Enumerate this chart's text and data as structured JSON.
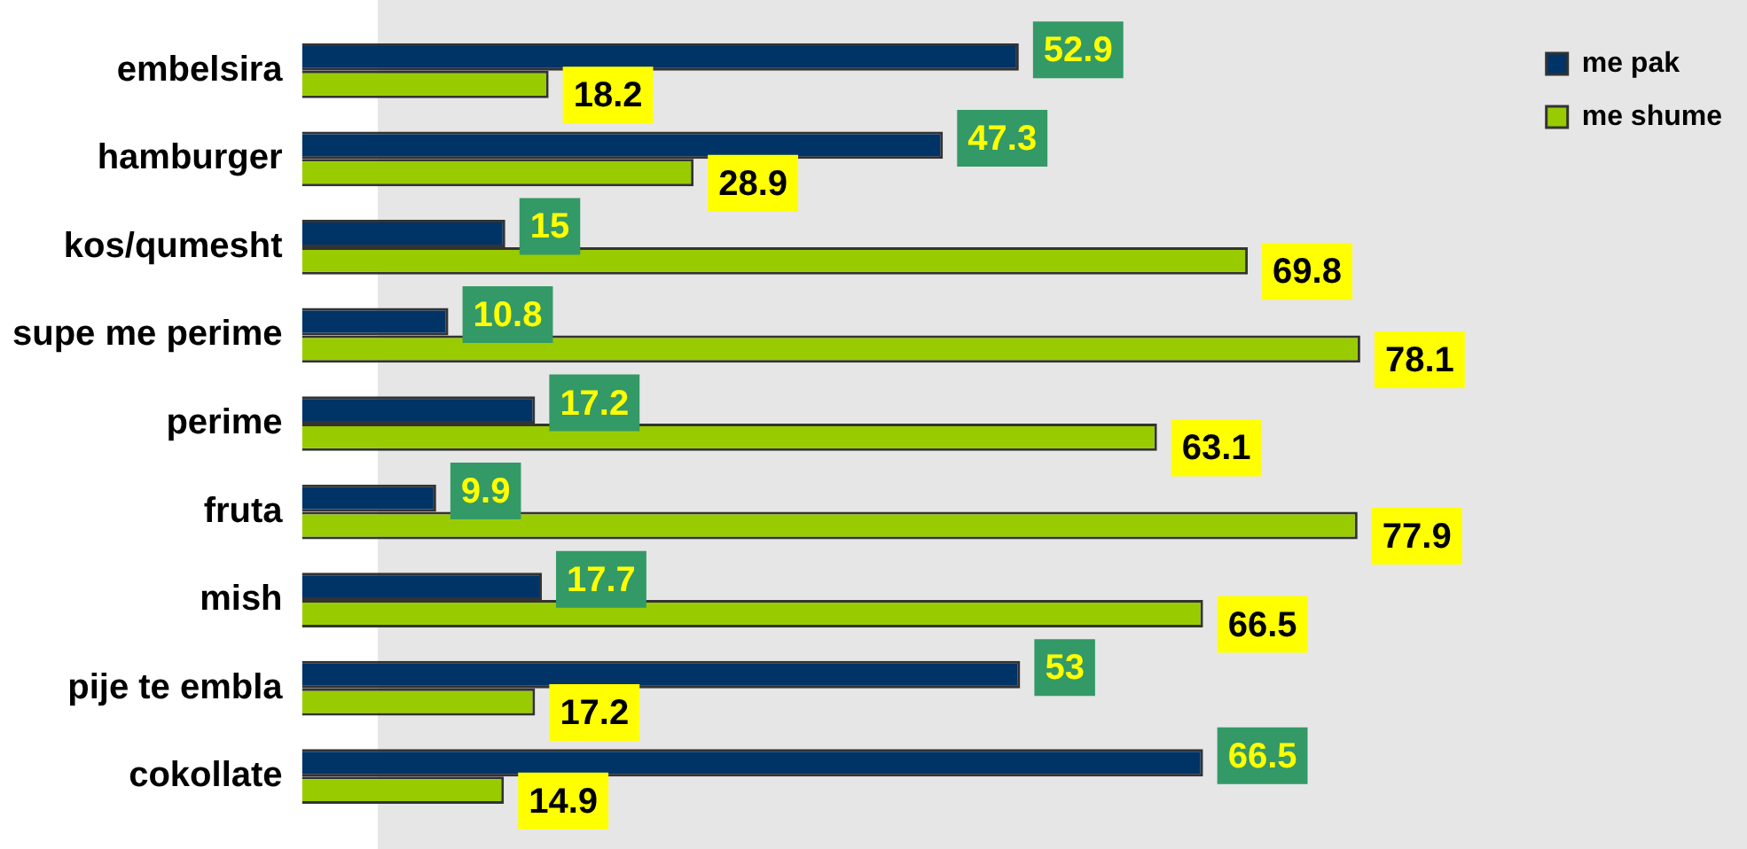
{
  "chart_data": {
    "type": "bar",
    "orientation": "horizontal",
    "categories": [
      "embelsira",
      "hamburger",
      "kos/qumesht",
      "supe me perime",
      "perime",
      "fruta",
      "mish",
      "pije te embla",
      "cokollate"
    ],
    "series": [
      {
        "name": "me pak",
        "color": "#003366",
        "values": [
          52.9,
          47.3,
          15,
          10.8,
          17.2,
          9.9,
          17.7,
          53,
          66.5
        ]
      },
      {
        "name": "me shume",
        "color": "#99cc00",
        "values": [
          18.2,
          28.9,
          69.8,
          78.1,
          63.1,
          77.9,
          66.5,
          17.2,
          14.9
        ]
      }
    ],
    "data_labels": true,
    "legend": "top right"
  }
}
